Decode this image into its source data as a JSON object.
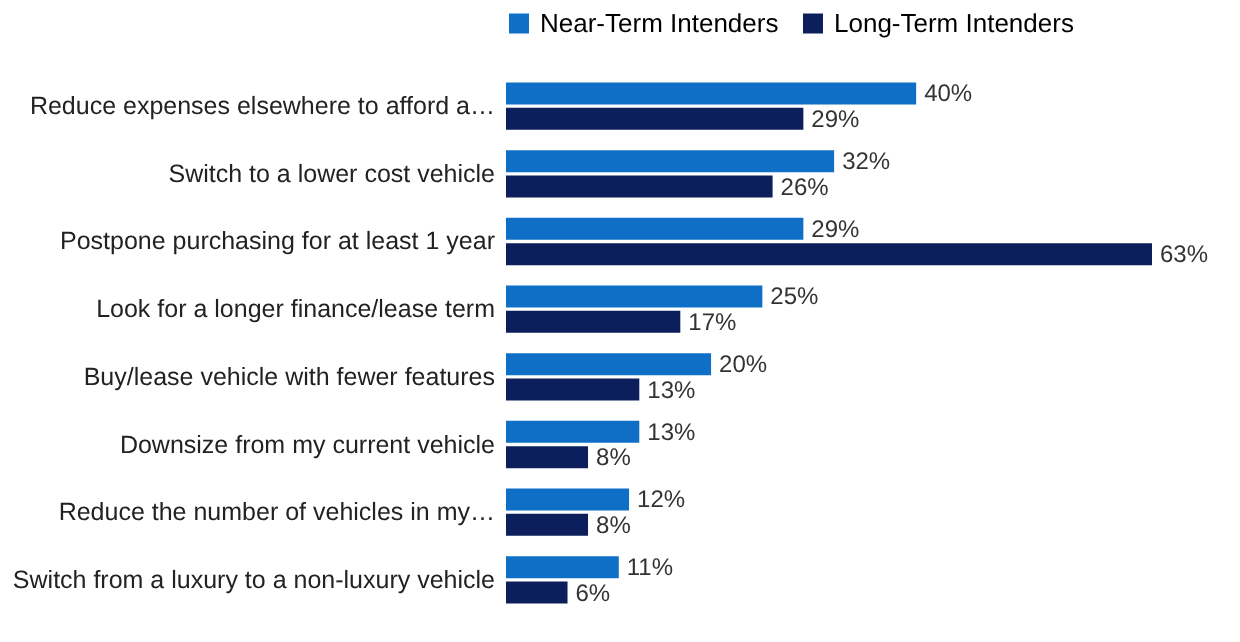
{
  "chart_data": {
    "type": "bar",
    "orientation": "horizontal",
    "legend": "top",
    "categories": [
      "Reduce expenses elsewhere to afford a…",
      "Switch to a lower cost vehicle",
      "Postpone purchasing for at least 1 year",
      "Look for a longer finance/lease term",
      "Buy/lease vehicle with fewer features",
      "Downsize from my current vehicle",
      "Reduce the number of vehicles in my…",
      "Switch from a luxury to a non-luxury vehicle"
    ],
    "series": [
      {
        "name": "Near-Term Intenders",
        "color": "#0f6fc6",
        "values": [
          40,
          32,
          29,
          25,
          20,
          13,
          12,
          11
        ],
        "value_labels": [
          "40%",
          "32%",
          "29%",
          "25%",
          "20%",
          "13%",
          "12%",
          "11%"
        ]
      },
      {
        "name": "Long-Term Intenders",
        "color": "#0c1f5c",
        "values": [
          29,
          26,
          63,
          17,
          13,
          8,
          8,
          6
        ],
        "value_labels": [
          "29%",
          "26%",
          "63%",
          "17%",
          "13%",
          "8%",
          "8%",
          "6%"
        ]
      }
    ]
  }
}
